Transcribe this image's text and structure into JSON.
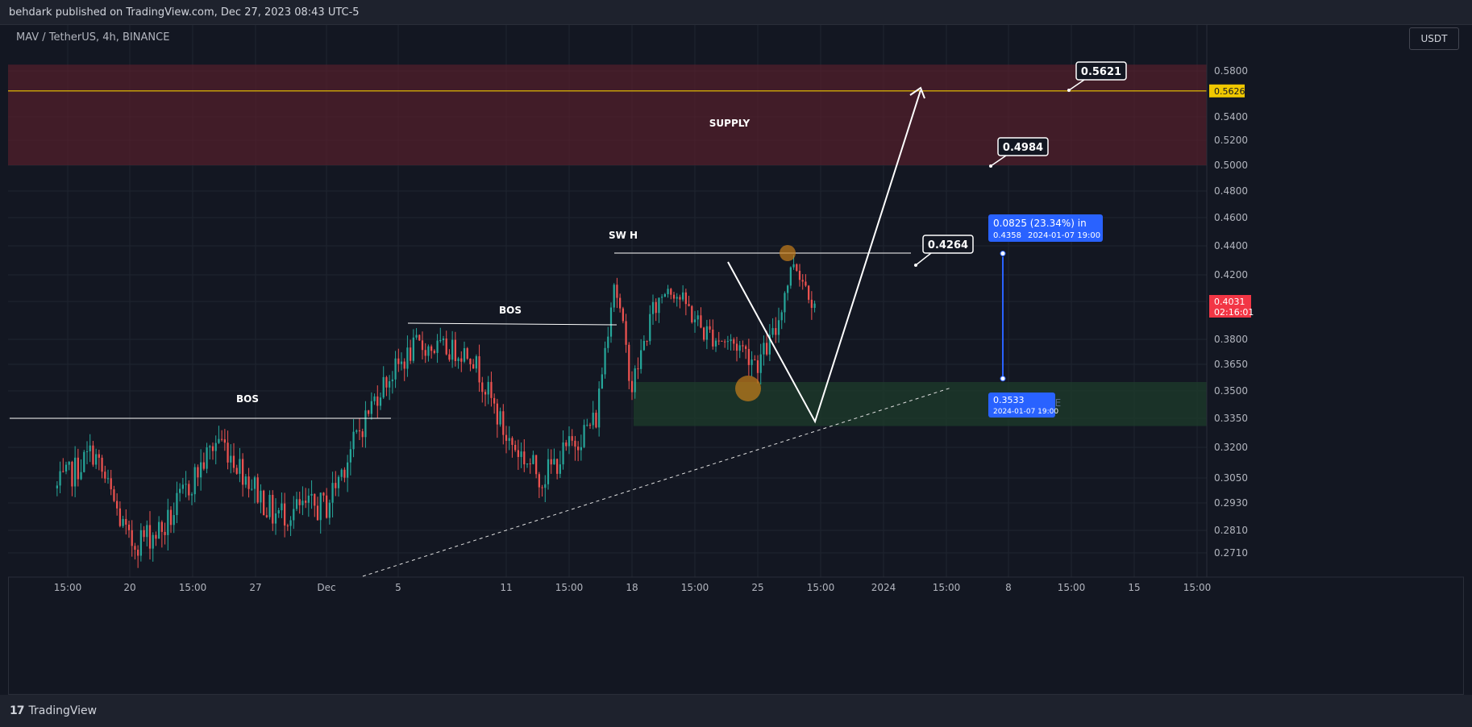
{
  "header": {
    "published": "behdark published on TradingView.com, Dec 27, 2023 08:43 UTC-5"
  },
  "symbol": "MAV / TetherUS, 4h, BINANCE",
  "axis_unit": "USDT",
  "footer": {
    "brand": "TradingView",
    "logo": "tradingview-logo-icon"
  },
  "colors": {
    "background": "#131722",
    "up": "#26a69a",
    "down": "#ef5350",
    "supply": "#5a1f2c",
    "buy_zone": "#1d3a2a",
    "level": "#f0c800",
    "measure": "#2962ff"
  },
  "chart_data": {
    "type": "candlestick",
    "ylim": [
      0.2645,
      0.595
    ],
    "y_ticks": [
      "0.5800",
      "0.5400",
      "0.5200",
      "0.5000",
      "0.4800",
      "0.4600",
      "0.4400",
      "0.4200",
      "0.4000",
      "0.3800",
      "0.3650",
      "0.3500",
      "0.3350",
      "0.3200",
      "0.3050",
      "0.2930",
      "0.2810",
      "0.2710"
    ],
    "x_ticks": [
      "15:00",
      "20",
      "15:00",
      "27",
      "Dec",
      "5",
      "11",
      "15:00",
      "18",
      "15:00",
      "25",
      "15:00",
      "2024",
      "15:00",
      "8",
      "15:00",
      "15",
      "15:00"
    ],
    "x_range": [
      "2023-11-16",
      "2024-01-18"
    ],
    "ohlc_series": {
      "start": "2023-11-16 00:00",
      "interval": "4h",
      "generated_from_trend_points": [
        [
          "2023-11-16",
          0.3
        ],
        [
          "2023-11-18",
          0.318
        ],
        [
          "2023-11-20",
          0.275
        ],
        [
          "2023-11-22",
          0.282
        ],
        [
          "2023-11-25",
          0.325
        ],
        [
          "2023-11-28",
          0.288
        ],
        [
          "2023-12-01",
          0.292
        ],
        [
          "2023-12-04",
          0.352
        ],
        [
          "2023-12-06",
          0.376
        ],
        [
          "2023-12-09",
          0.372
        ],
        [
          "2023-12-11",
          0.325
        ],
        [
          "2023-12-13",
          0.305
        ],
        [
          "2023-12-16",
          0.335
        ],
        [
          "2023-12-17",
          0.415
        ],
        [
          "2023-12-18",
          0.352
        ],
        [
          "2023-12-19",
          0.39
        ],
        [
          "2023-12-20",
          0.412
        ],
        [
          "2023-12-22",
          0.384
        ],
        [
          "2023-12-24",
          0.376
        ],
        [
          "2023-12-25",
          0.366
        ],
        [
          "2023-12-26",
          0.384
        ],
        [
          "2023-12-27",
          0.43
        ],
        [
          "2023-12-28",
          0.403
        ]
      ]
    },
    "zones": [
      {
        "label": "SUPPLY",
        "from": 0.5,
        "to": 0.5855
      },
      {
        "label": "BUY ZONE",
        "from": 0.331,
        "to": 0.355
      }
    ],
    "levels": [
      {
        "label": "BOS",
        "price": 0.336
      },
      {
        "label": "BOS",
        "price": 0.392
      },
      {
        "label": "SW H",
        "price": 0.4355
      }
    ],
    "horizontal_line": {
      "price": 0.5626
    },
    "price_callouts": [
      "0.5621",
      "0.4984",
      "0.4264"
    ],
    "axis_badges": [
      {
        "text": "0.5626",
        "price": 0.5626
      },
      {
        "text": "0.4031",
        "subtext": "02:16:01",
        "price": 0.4031
      }
    ],
    "measure": {
      "from_price": 0.3533,
      "to_price": 0.4358,
      "top_label": "0.0825 (23.34%) in",
      "top_sub": "0.4358",
      "top_date": "2024-01-07  19:00",
      "bottom_label": "0.3533",
      "bottom_sub": "2024-01-07 19:00"
    },
    "projection_path": [
      [
        "2023-12-23 12:00",
        0.423
      ],
      [
        "2023-12-31 00:00",
        0.334
      ],
      [
        "2024-01-06 00:00",
        0.56
      ]
    ]
  }
}
